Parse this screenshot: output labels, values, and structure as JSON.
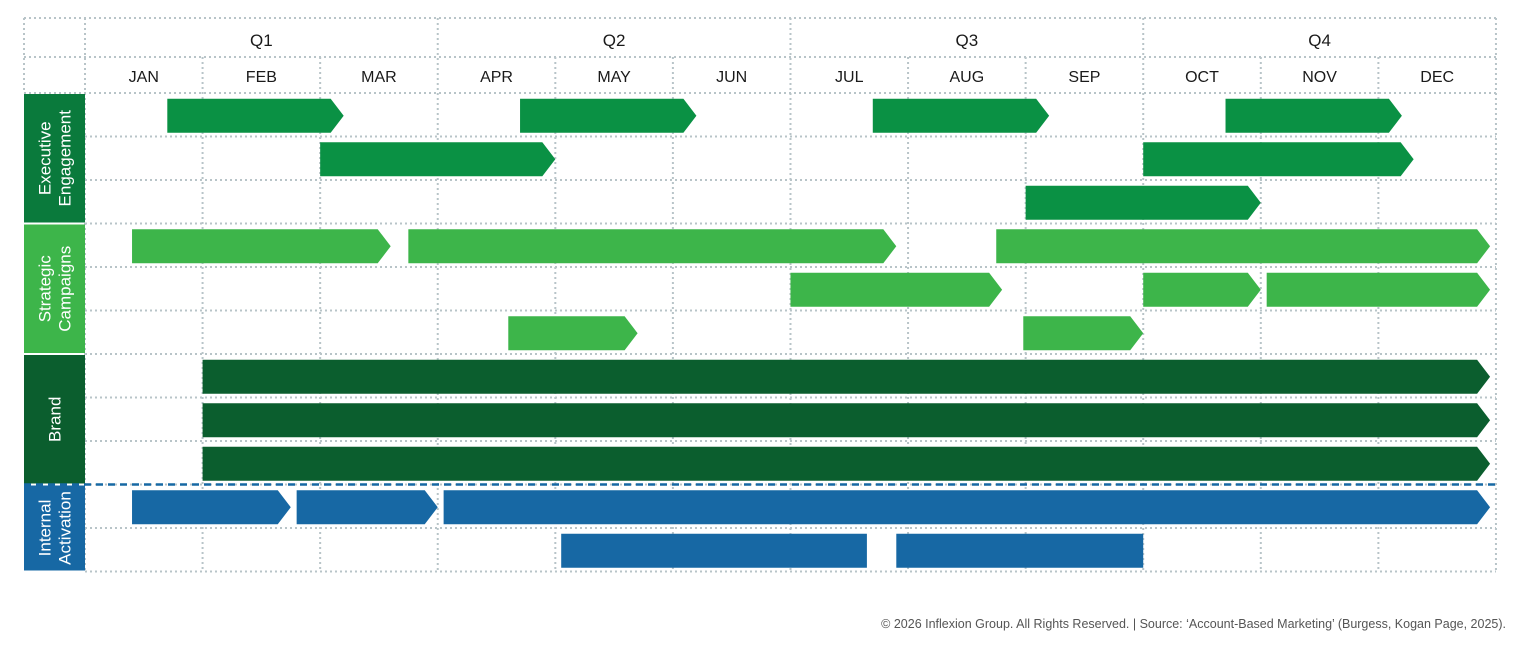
{
  "quarters": [
    "Q1",
    "Q2",
    "Q3",
    "Q4"
  ],
  "months": [
    "JAN",
    "FEB",
    "MAR",
    "APR",
    "MAY",
    "JUN",
    "JUL",
    "AUG",
    "SEP",
    "OCT",
    "NOV",
    "DEC"
  ],
  "categories": [
    {
      "id": "executive",
      "label_lines": [
        "Executive",
        "Engagement"
      ],
      "color": "#0a7a3c",
      "lanes": 3
    },
    {
      "id": "strategic",
      "label_lines": [
        "Strategic",
        "Campaigns"
      ],
      "color": "#3db54a",
      "lanes": 3
    },
    {
      "id": "brand",
      "label_lines": [
        "Brand"
      ],
      "color": "#0b5e2e",
      "lanes": 3
    },
    {
      "id": "internal",
      "label_lines": [
        "Internal",
        "Activation"
      ],
      "color": "#1768a4",
      "lanes": 2
    }
  ],
  "bars": [
    {
      "category": "executive",
      "lane": 0,
      "start": 0.7,
      "end": 2.2,
      "color": "#0a9144"
    },
    {
      "category": "executive",
      "lane": 0,
      "start": 3.7,
      "end": 5.2,
      "color": "#0a9144"
    },
    {
      "category": "executive",
      "lane": 0,
      "start": 6.7,
      "end": 8.2,
      "color": "#0a9144"
    },
    {
      "category": "executive",
      "lane": 0,
      "start": 9.7,
      "end": 11.2,
      "color": "#0a9144"
    },
    {
      "category": "executive",
      "lane": 1,
      "start": 2.0,
      "end": 4.0,
      "color": "#0a9144"
    },
    {
      "category": "executive",
      "lane": 1,
      "start": 9.0,
      "end": 11.3,
      "color": "#0a9144"
    },
    {
      "category": "executive",
      "lane": 2,
      "start": 8.0,
      "end": 10.0,
      "color": "#0a9144"
    },
    {
      "category": "strategic",
      "lane": 0,
      "start": 0.4,
      "end": 2.6,
      "color": "#3db54a"
    },
    {
      "category": "strategic",
      "lane": 0,
      "start": 2.75,
      "end": 6.9,
      "color": "#3db54a"
    },
    {
      "category": "strategic",
      "lane": 0,
      "start": 7.75,
      "end": 11.95,
      "color": "#3db54a"
    },
    {
      "category": "strategic",
      "lane": 1,
      "start": 6.0,
      "end": 7.8,
      "color": "#3db54a"
    },
    {
      "category": "strategic",
      "lane": 1,
      "start": 9.0,
      "end": 10.0,
      "color": "#3db54a"
    },
    {
      "category": "strategic",
      "lane": 1,
      "start": 10.05,
      "end": 11.95,
      "color": "#3db54a"
    },
    {
      "category": "strategic",
      "lane": 2,
      "start": 3.6,
      "end": 4.7,
      "color": "#3db54a"
    },
    {
      "category": "strategic",
      "lane": 2,
      "start": 7.98,
      "end": 9.0,
      "color": "#3db54a"
    },
    {
      "category": "brand",
      "lane": 0,
      "start": 1.0,
      "end": 11.95,
      "color": "#0b5e2e"
    },
    {
      "category": "brand",
      "lane": 1,
      "start": 1.0,
      "end": 11.95,
      "color": "#0b5e2e"
    },
    {
      "category": "brand",
      "lane": 2,
      "start": 1.0,
      "end": 11.95,
      "color": "#0b5e2e"
    },
    {
      "category": "internal",
      "lane": 0,
      "start": 0.4,
      "end": 1.75,
      "color": "#1768a4"
    },
    {
      "category": "internal",
      "lane": 0,
      "start": 1.8,
      "end": 3.0,
      "color": "#1768a4"
    },
    {
      "category": "internal",
      "lane": 0,
      "start": 3.05,
      "end": 11.95,
      "color": "#1768a4"
    },
    {
      "category": "internal",
      "lane": 1,
      "start": 4.05,
      "end": 6.65,
      "color": "#1768a4",
      "arrow": false
    },
    {
      "category": "internal",
      "lane": 1,
      "start": 6.9,
      "end": 9.0,
      "color": "#1768a4",
      "arrow": false
    }
  ],
  "footer": "© 2026 Inflexion Group. All Rights Reserved. | Source: ‘Account-Based Marketing’ (Burgess, Kogan Page, 2025)."
}
